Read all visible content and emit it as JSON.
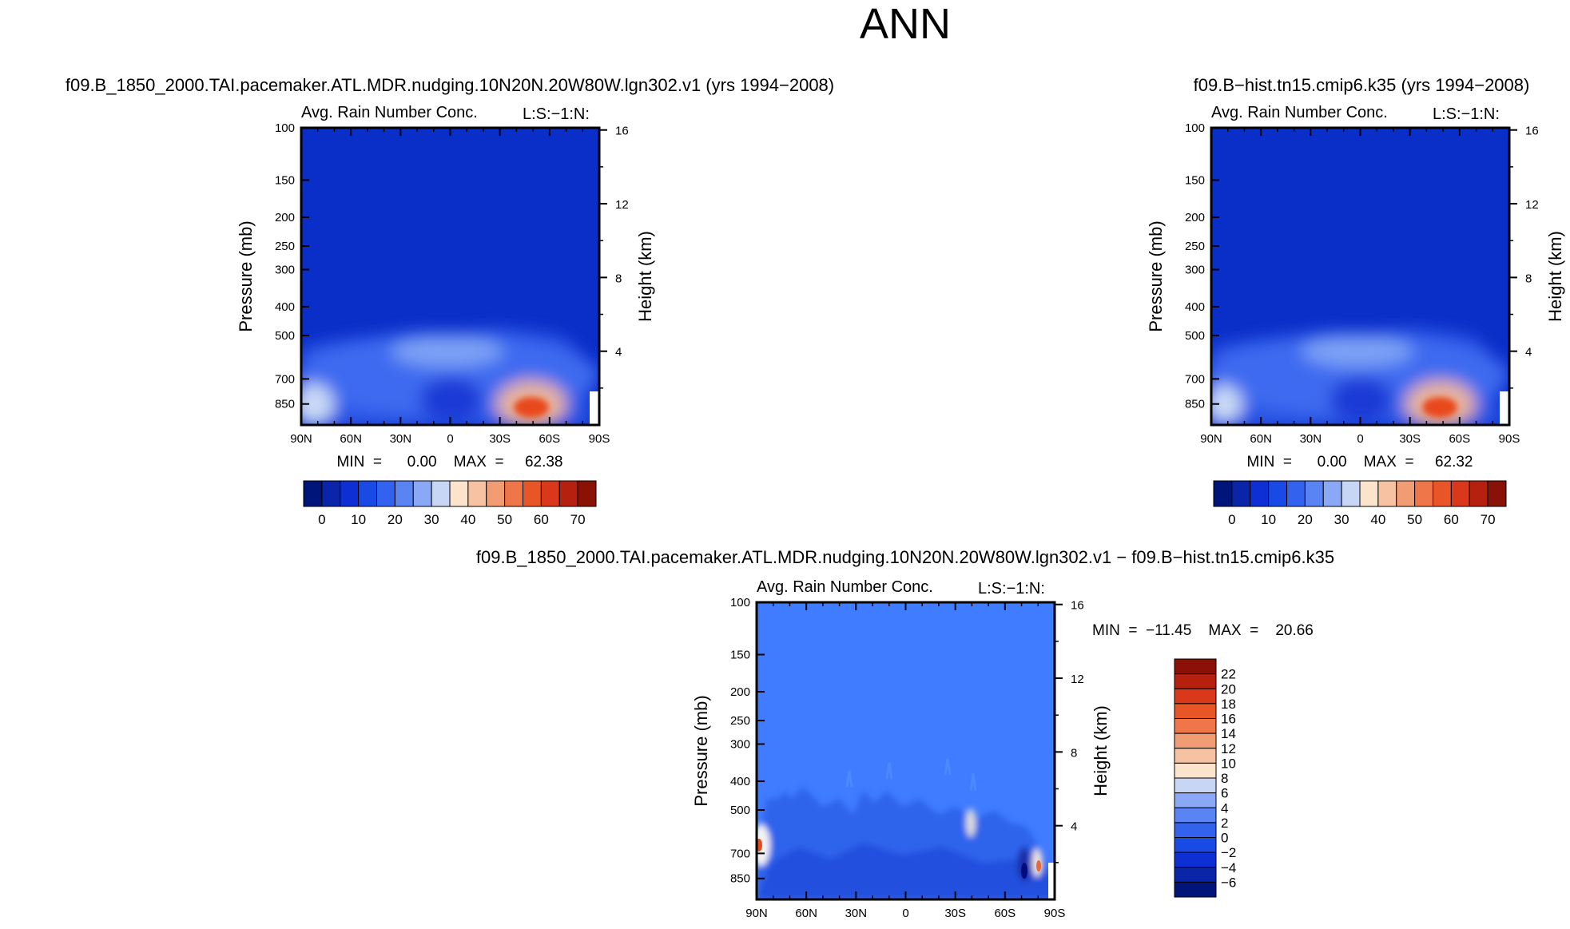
{
  "page_title": "ANN",
  "chart_data": [
    {
      "type": "heatmap",
      "case_title": "f09.B_1850_2000.TAI.pacemaker.ATL.MDR.nudging.10N20N.20W80W.lgn302.v1  (yrs  1994−2008)",
      "variable": "Avg.  Rain  Number  Conc.",
      "tag": "L:S:−1:N:",
      "ylabel": "Pressure  (mb)",
      "ylabel_right": "Height  (km)",
      "xticks": [
        "90N",
        "60N",
        "30N",
        "0",
        "30S",
        "60S",
        "90S"
      ],
      "yticks": [
        "100",
        "150",
        "200",
        "250",
        "300",
        "400",
        "500",
        "700",
        "850"
      ],
      "height_ticks": [
        "16",
        "12",
        "8",
        "4"
      ],
      "ylim": [
        100,
        1000
      ],
      "stats": "MIN  =      0.00    MAX  =     62.38",
      "min": 0.0,
      "max": 62.38,
      "colorbar_labels": [
        "0",
        "10",
        "20",
        "30",
        "40",
        "50",
        "60",
        "70"
      ],
      "levels": [
        0,
        5,
        10,
        15,
        20,
        25,
        30,
        35,
        40,
        45,
        50,
        55,
        60,
        65,
        70
      ],
      "features": [
        {
          "lat": 85,
          "p": 845,
          "value": 42,
          "label": "90N surface maximum"
        },
        {
          "lat": 15,
          "p": 560,
          "value": 22,
          "label": "mid-level tropical maximum"
        },
        {
          "lat": -52,
          "p": 865,
          "value": 62,
          "label": "southern storm-track maximum"
        }
      ]
    },
    {
      "type": "heatmap",
      "case_title": "f09.B−hist.tn15.cmip6.k35  (yrs  1994−2008)",
      "variable": "Avg.  Rain  Number  Conc.",
      "tag": "L:S:−1:N:",
      "ylabel": "Pressure  (mb)",
      "ylabel_right": "Height  (km)",
      "xticks": [
        "90N",
        "60N",
        "30N",
        "0",
        "30S",
        "60S",
        "90S"
      ],
      "yticks": [
        "100",
        "150",
        "200",
        "250",
        "300",
        "400",
        "500",
        "700",
        "850"
      ],
      "height_ticks": [
        "16",
        "12",
        "8",
        "4"
      ],
      "ylim": [
        100,
        1000
      ],
      "stats": "MIN  =      0.00    MAX  =     62.32",
      "min": 0.0,
      "max": 62.32,
      "colorbar_labels": [
        "0",
        "10",
        "20",
        "30",
        "40",
        "50",
        "60",
        "70"
      ],
      "levels": [
        0,
        5,
        10,
        15,
        20,
        25,
        30,
        35,
        40,
        45,
        50,
        55,
        60,
        65,
        70
      ],
      "features": [
        {
          "lat": 85,
          "p": 845,
          "value": 40,
          "label": "90N surface maximum"
        },
        {
          "lat": 15,
          "p": 560,
          "value": 21,
          "label": "mid-level tropical maximum"
        },
        {
          "lat": -52,
          "p": 865,
          "value": 61,
          "label": "southern storm-track maximum"
        }
      ]
    },
    {
      "type": "heatmap",
      "case_title": "f09.B_1850_2000.TAI.pacemaker.ATL.MDR.nudging.10N20N.20W80W.lgn302.v1  −  f09.B−hist.tn15.cmip6.k35",
      "variable": "Avg.  Rain  Number  Conc.",
      "tag": "L:S:−1:N:",
      "ylabel": "Pressure  (mb)",
      "ylabel_right": "Height  (km)",
      "xticks": [
        "90N",
        "60N",
        "30N",
        "0",
        "30S",
        "60S",
        "90S"
      ],
      "yticks": [
        "100",
        "150",
        "200",
        "250",
        "300",
        "400",
        "500",
        "700",
        "850"
      ],
      "height_ticks": [
        "16",
        "12",
        "8",
        "4"
      ],
      "ylim": [
        100,
        1000
      ],
      "stats": "MIN  =  −11.45    MAX  =    20.66",
      "min": -11.45,
      "max": 20.66,
      "colorbar_labels": [
        "22",
        "20",
        "18",
        "16",
        "14",
        "12",
        "10",
        "8",
        "6",
        "4",
        "2",
        "0",
        "−2",
        "−4",
        "−6"
      ],
      "levels": [
        -6,
        -4,
        -2,
        0,
        2,
        4,
        6,
        8,
        10,
        12,
        14,
        16,
        18,
        20,
        22
      ],
      "features": [
        {
          "lat": 88,
          "p": 680,
          "value": 20,
          "label": "90N positive anomaly"
        },
        {
          "lat": -42,
          "p": 520,
          "value": 9,
          "label": "mid-level positive anomaly"
        },
        {
          "lat": -70,
          "p": 770,
          "value": -11,
          "label": "southern negative anomaly"
        },
        {
          "lat": -78,
          "p": 770,
          "value": 12,
          "label": "southern positive anomaly"
        }
      ]
    }
  ],
  "colors": {
    "background_field": "#0a2ec8",
    "difference_field": "#3f7cff",
    "warm_max": "#e8491d",
    "cool_min": "#001c9e"
  }
}
